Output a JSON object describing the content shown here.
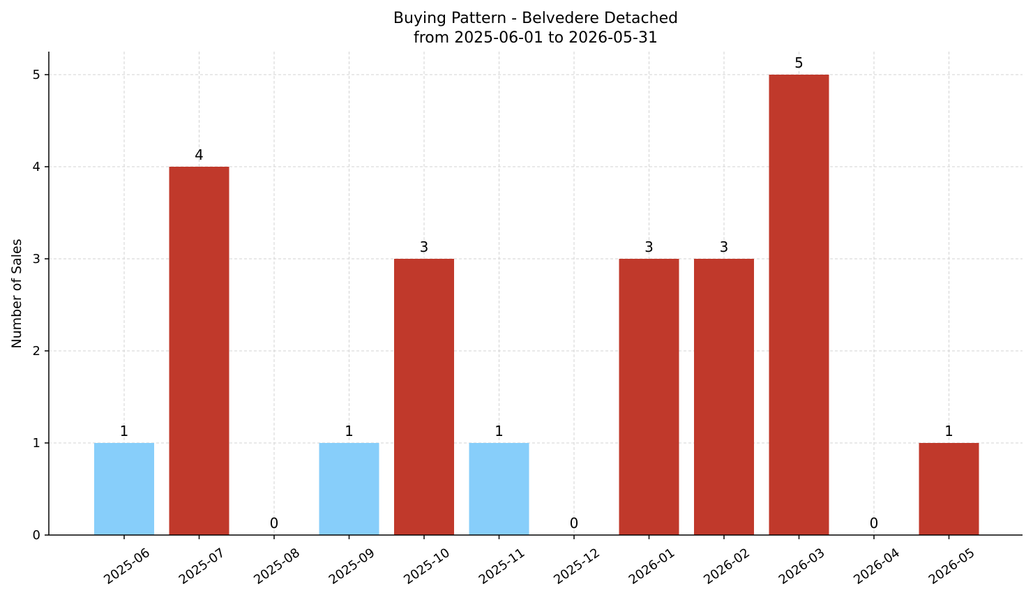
{
  "chart_data": {
    "type": "bar",
    "title": "Buying Pattern - Belvedere Detached",
    "subtitle": "from 2025-06-01 to 2026-05-31",
    "xlabel": "",
    "ylabel": "Number of Sales",
    "categories": [
      "2025-06",
      "2025-07",
      "2025-08",
      "2025-09",
      "2025-10",
      "2025-11",
      "2025-12",
      "2026-01",
      "2026-02",
      "2026-03",
      "2026-04",
      "2026-05"
    ],
    "values": [
      1,
      4,
      0,
      1,
      3,
      1,
      0,
      3,
      3,
      5,
      0,
      1
    ],
    "bar_colors": [
      "#87cefa",
      "#c0392b",
      "#c0392b",
      "#87cefa",
      "#c0392b",
      "#87cefa",
      "#c0392b",
      "#c0392b",
      "#c0392b",
      "#c0392b",
      "#c0392b",
      "#c0392b"
    ],
    "yticks": [
      0,
      1,
      2,
      3,
      4,
      5
    ],
    "ylim": [
      0,
      5.25
    ],
    "grid": true,
    "legend": "none"
  }
}
